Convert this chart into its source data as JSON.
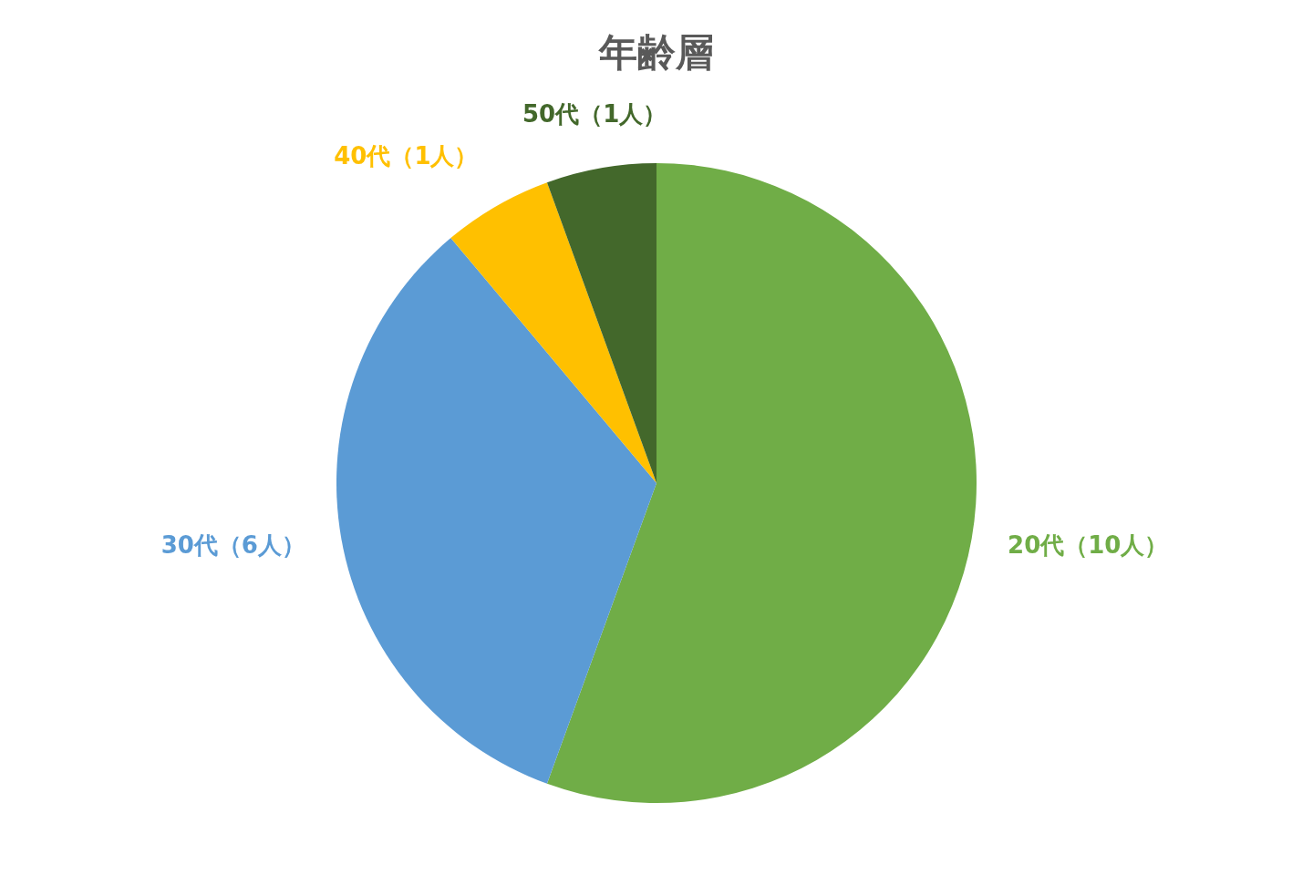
{
  "chart_data": {
    "type": "pie",
    "title": "年齢層",
    "categories": [
      "20代（10人）",
      "30代（6人）",
      "40代（1人）",
      "50代（1人）"
    ],
    "values": [
      10,
      6,
      1,
      1
    ],
    "colors": [
      "#70ad47",
      "#5b9bd5",
      "#ffc000",
      "#43682b"
    ]
  }
}
